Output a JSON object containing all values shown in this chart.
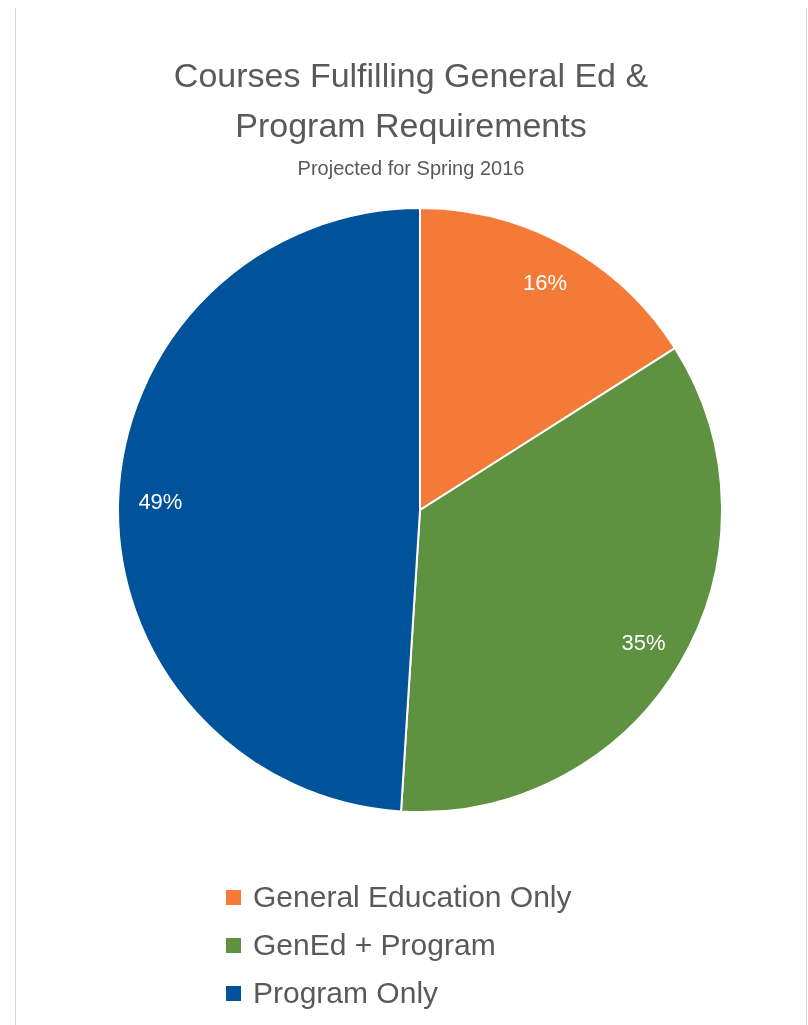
{
  "chart_data": {
    "type": "pie",
    "title": "Courses Fulfilling General Ed & Program Requirements",
    "subtitle": "Projected for Spring 2016",
    "categories": [
      "General Education Only",
      "GenEd + Program",
      "Program Only"
    ],
    "values": [
      16,
      35,
      49
    ],
    "value_labels": [
      "16%",
      "35%",
      "49%"
    ],
    "colors": [
      "#f47b37",
      "#5e9140",
      "#00529b"
    ],
    "legend": "bottom"
  }
}
